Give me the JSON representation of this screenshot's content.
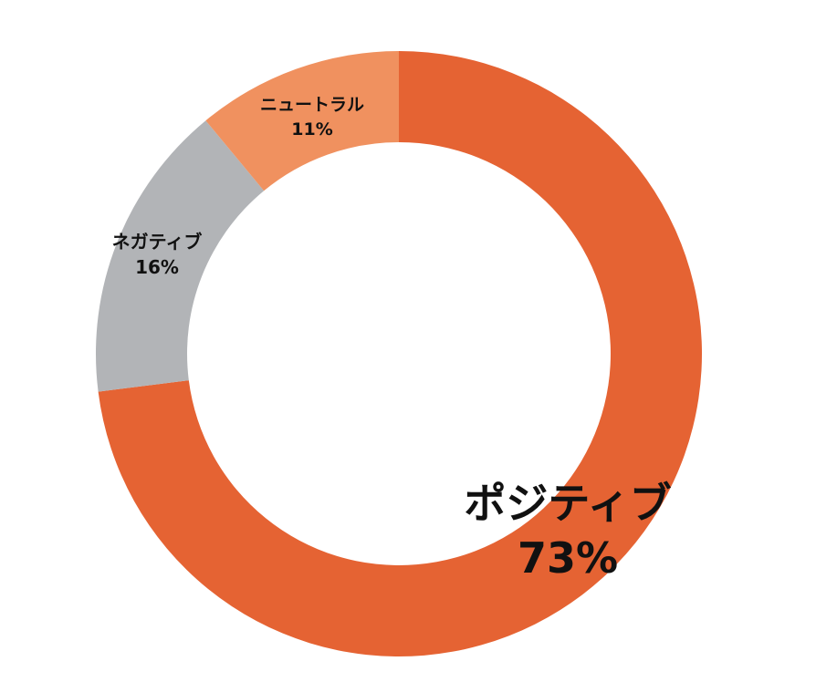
{
  "chart_data": {
    "type": "pie",
    "variant": "donut",
    "slices": [
      {
        "label": "ポジティブ",
        "value": 73,
        "value_label": "73%",
        "color": "#e56333"
      },
      {
        "label": "ネガティブ",
        "value": 16,
        "value_label": "16%",
        "color": "#b2b4b7"
      },
      {
        "label": "ニュートラル",
        "value": 11,
        "value_label": "11%",
        "color": "#f0915f"
      }
    ],
    "start": "12 o'clock",
    "direction": "clockwise",
    "legend": "none"
  }
}
